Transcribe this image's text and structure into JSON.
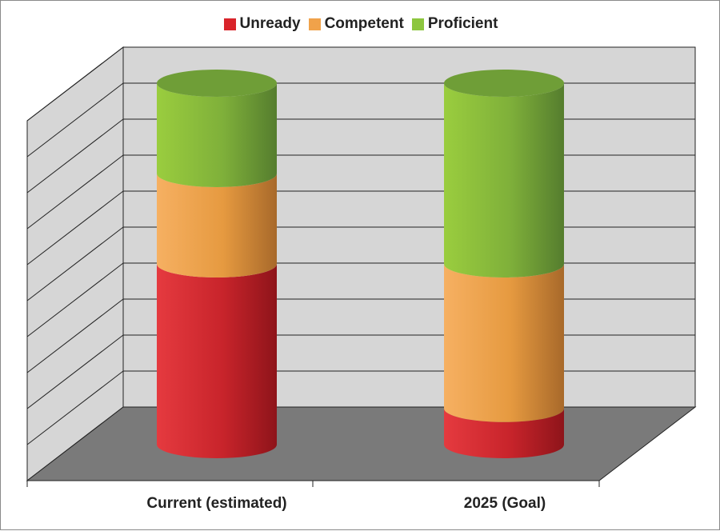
{
  "chart_data": {
    "type": "bar",
    "style": "3d-stacked-cylinder",
    "categories": [
      "Current (estimated)",
      "2025 (Goal)"
    ],
    "series": [
      {
        "name": "Unready",
        "values": [
          50,
          10
        ],
        "color": "#d9242b"
      },
      {
        "name": "Competent",
        "values": [
          25,
          40
        ],
        "color": "#f0a24a"
      },
      {
        "name": "Proficient",
        "values": [
          25,
          50
        ],
        "color": "#8dc63f"
      }
    ],
    "ylim": [
      0,
      100
    ],
    "grid": true,
    "legend_position": "top-center",
    "xlabel": "",
    "ylabel": ""
  }
}
